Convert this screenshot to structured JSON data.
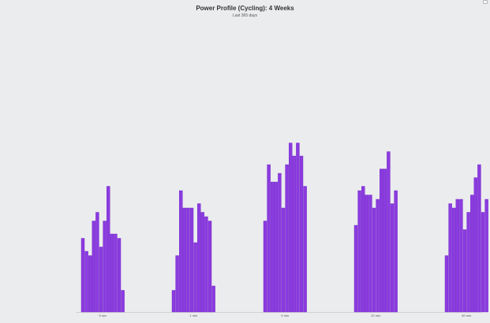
{
  "chart_data": {
    "type": "bar",
    "title": "Power Profile (Cycling): 4 Weeks",
    "subtitle": "Last 365 days",
    "categories": [
      "5 sec",
      "1 min",
      "5 min",
      "20 min",
      "60 min"
    ],
    "ylim": [
      0,
      40
    ],
    "grid": false,
    "legend": "none",
    "colors": {
      "bar": "#8b3bdf",
      "bar_edge": "#6f22c6",
      "background": "#ebecee",
      "axis": "#cfd0d3"
    },
    "groups": [
      {
        "category": "5 sec",
        "values": [
          17,
          14,
          13,
          21,
          23,
          15,
          21,
          29,
          18,
          18,
          17,
          5
        ]
      },
      {
        "category": "1 min",
        "values": [
          5,
          13,
          28,
          24,
          24,
          24,
          16,
          25,
          23,
          22,
          21,
          6
        ]
      },
      {
        "category": "5 min",
        "values": [
          21,
          34,
          30,
          30,
          32,
          24,
          34,
          39,
          36,
          39,
          36,
          29
        ]
      },
      {
        "category": "20 min",
        "values": [
          20,
          28,
          29,
          27,
          27,
          24,
          26,
          33,
          33,
          37,
          25,
          28
        ]
      },
      {
        "category": "60 min",
        "values": [
          13,
          25,
          24,
          26,
          26,
          19,
          23,
          27,
          31,
          34,
          23,
          26
        ]
      }
    ]
  },
  "toolbar": {
    "export_icon": "menu-icon"
  }
}
